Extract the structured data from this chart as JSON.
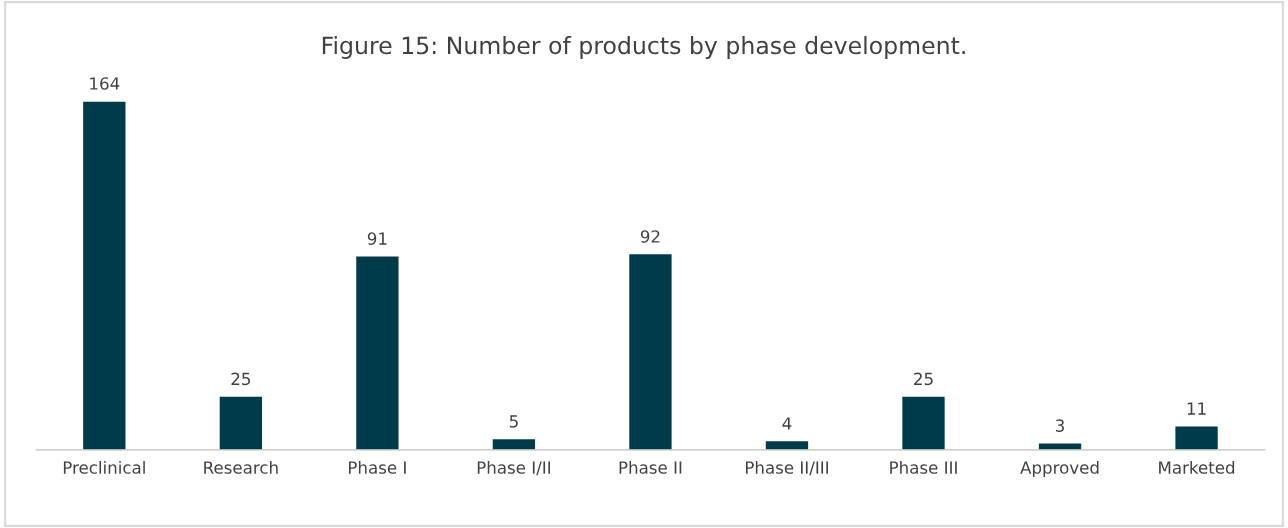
{
  "chart_data": {
    "type": "bar",
    "title": "Figure 15: Number of products by phase development.",
    "categories": [
      "Preclinical",
      "Research",
      "Phase I",
      "Phase I/II",
      "Phase II",
      "Phase II/III",
      "Phase III",
      "Approved",
      "Marketed"
    ],
    "values": [
      164,
      25,
      91,
      5,
      92,
      4,
      25,
      3,
      11
    ],
    "color": "#003b4a",
    "data_labels": true,
    "grid": false,
    "legend": false
  }
}
